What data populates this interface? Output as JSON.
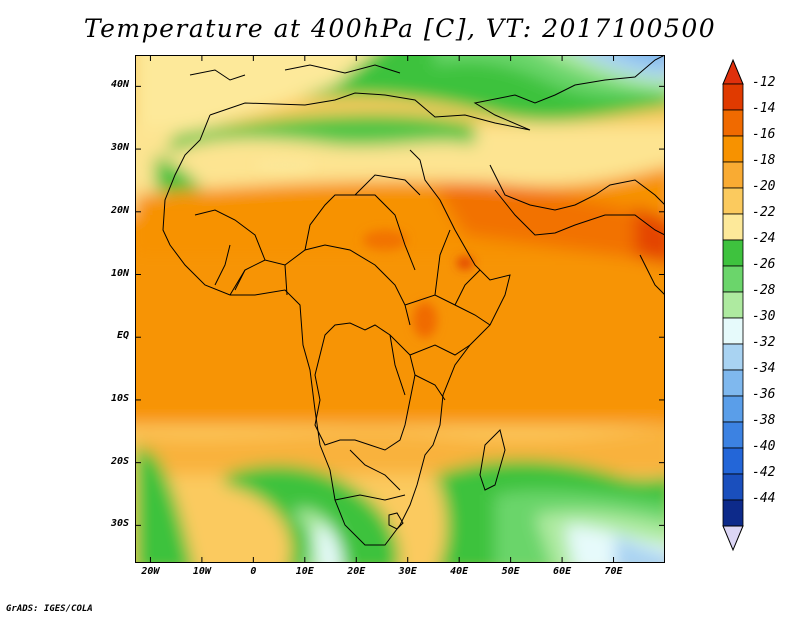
{
  "title": "Temperature at 400hPa [C], VT: 2017100500",
  "credit": "GrADS: IGES/COLA",
  "map": {
    "region": "Africa",
    "lon_range": [
      -23,
      80
    ],
    "lat_range": [
      -36,
      45
    ],
    "lat_ticks": [
      {
        "value": 40,
        "label": "40N"
      },
      {
        "value": 30,
        "label": "30N"
      },
      {
        "value": 20,
        "label": "20N"
      },
      {
        "value": 10,
        "label": "10N"
      },
      {
        "value": 0,
        "label": "EQ"
      },
      {
        "value": -10,
        "label": "10S"
      },
      {
        "value": -20,
        "label": "20S"
      },
      {
        "value": -30,
        "label": "30S"
      }
    ],
    "lon_ticks": [
      {
        "value": -20,
        "label": "20W"
      },
      {
        "value": -10,
        "label": "10W"
      },
      {
        "value": 0,
        "label": "0"
      },
      {
        "value": 10,
        "label": "10E"
      },
      {
        "value": 20,
        "label": "20E"
      },
      {
        "value": 30,
        "label": "30E"
      },
      {
        "value": 40,
        "label": "40E"
      },
      {
        "value": 50,
        "label": "50E"
      },
      {
        "value": 60,
        "label": "60E"
      },
      {
        "value": 70,
        "label": "70E"
      }
    ]
  },
  "colorbar": {
    "labels": [
      "-12",
      "-14",
      "-16",
      "-18",
      "-20",
      "-22",
      "-24",
      "-26",
      "-28",
      "-30",
      "-32",
      "-34",
      "-36",
      "-38",
      "-40",
      "-42",
      "-44"
    ],
    "colors": [
      "#e03a00",
      "#f06a00",
      "#f79200",
      "#f9ab33",
      "#fbca5e",
      "#fde99a",
      "#3ec23e",
      "#6bd56b",
      "#aeeaa0",
      "#e6fafb",
      "#a9d3f2",
      "#7fb8ee",
      "#5a9ee9",
      "#3c82e2",
      "#2366d8",
      "#1a4fbd",
      "#0d2a8a"
    ],
    "top_triangle_color": "#e0300c",
    "bottom_triangle_color": "#dcd6f5"
  }
}
